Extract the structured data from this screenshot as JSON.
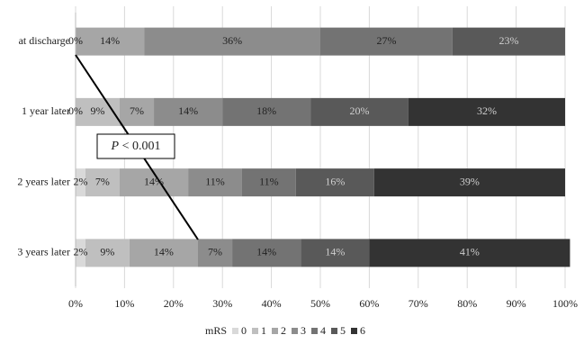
{
  "chart_data": {
    "type": "stacked-barh",
    "categories": [
      "at discharge",
      "1 year later",
      "2 years later",
      "3 years later"
    ],
    "legend_title": "mRS",
    "series": [
      {
        "name": "0",
        "color": "#d9d9d9",
        "values": [
          0,
          0,
          2,
          2
        ],
        "value_labels": [
          "0%",
          "0%",
          "2%",
          "2%"
        ]
      },
      {
        "name": "1",
        "color": "#bfbfbf",
        "values": [
          null,
          9,
          7,
          9
        ],
        "value_labels": [
          null,
          "9%",
          "7%",
          "9%"
        ]
      },
      {
        "name": "2",
        "color": "#a6a6a6",
        "values": [
          14,
          7,
          14,
          14
        ],
        "value_labels": [
          "14%",
          "7%",
          "14%",
          "14%"
        ]
      },
      {
        "name": "3",
        "color": "#8c8c8c",
        "values": [
          36,
          14,
          11,
          7
        ],
        "value_labels": [
          "36%",
          "14%",
          "11%",
          "7%"
        ]
      },
      {
        "name": "4",
        "color": "#737373",
        "values": [
          27,
          18,
          11,
          14
        ],
        "value_labels": [
          "27%",
          "18%",
          "11%",
          "14%"
        ]
      },
      {
        "name": "5",
        "color": "#595959",
        "values": [
          23,
          20,
          16,
          14
        ],
        "value_labels": [
          "23%",
          "20%",
          "16%",
          "14%"
        ]
      },
      {
        "name": "6",
        "color": "#333333",
        "values": [
          null,
          32,
          39,
          41
        ],
        "value_labels": [
          null,
          "32%",
          "39%",
          "41%"
        ]
      }
    ],
    "xlim": [
      0,
      100
    ],
    "xticks": [
      {
        "value": 0,
        "label": "0%"
      },
      {
        "value": 10,
        "label": "10%"
      },
      {
        "value": 20,
        "label": "20%"
      },
      {
        "value": 30,
        "label": "30%"
      },
      {
        "value": 40,
        "label": "40%"
      },
      {
        "value": 50,
        "label": "50%"
      },
      {
        "value": 60,
        "label": "60%"
      },
      {
        "value": 70,
        "label": "70%"
      },
      {
        "value": 80,
        "label": "80%"
      },
      {
        "value": 90,
        "label": "90%"
      },
      {
        "value": 100,
        "label": "100%"
      }
    ],
    "grid": true,
    "annotation_italic": "P",
    "annotation": "< 0.001"
  }
}
